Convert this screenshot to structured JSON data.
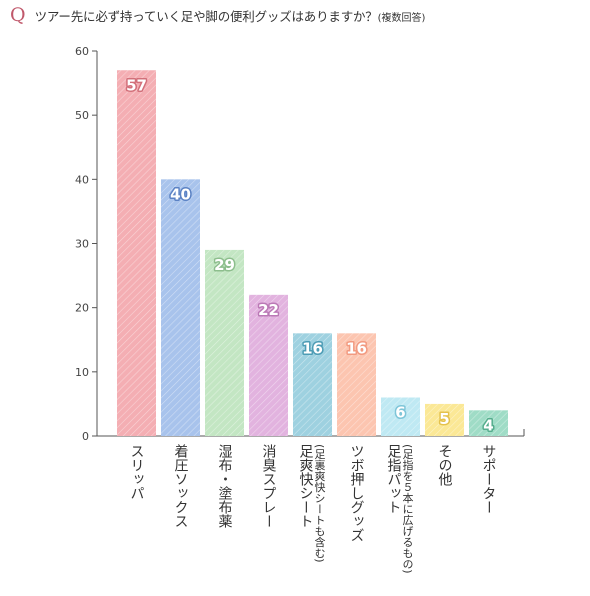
{
  "question": {
    "mark": "Q",
    "text": "ツアー先に必ず持っていく足や脚の便利グッズはありますか？",
    "sub": "(複数回答)"
  },
  "chart_data": {
    "type": "bar",
    "categories": [
      [
        "スリッパ"
      ],
      [
        "着圧ソックス"
      ],
      [
        "湿布・塗布薬"
      ],
      [
        "消臭スプレー"
      ],
      [
        "(足裏爽快シートも含む)",
        "足爽快シート"
      ],
      [
        "ツボ押しグッズ"
      ],
      [
        "(足指を５本に広げるもの)",
        "足指パット"
      ],
      [
        "その他"
      ],
      [
        "サポーター"
      ]
    ],
    "values": [
      57,
      40,
      29,
      22,
      16,
      16,
      6,
      5,
      4
    ],
    "ylim": [
      0,
      60
    ],
    "yticks": [
      0,
      10,
      20,
      30,
      40,
      50,
      60
    ],
    "grid": false,
    "colors": [
      "#f4aeb3",
      "#a8c3ec",
      "#c3e6c3",
      "#e2b3df",
      "#9ed1e0",
      "#fcc5b0",
      "#bfe9f3",
      "#fbe896",
      "#9fdcc6"
    ],
    "label_colors": [
      "#d2707a",
      "#5b82c4",
      "#8dbe8d",
      "#bb79b6",
      "#4d9cb5",
      "#f29a80",
      "#7ec5d8",
      "#e5c24d",
      "#55ad8d"
    ]
  }
}
